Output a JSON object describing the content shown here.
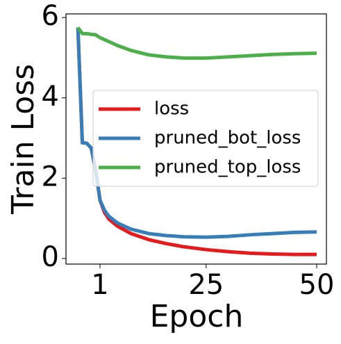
{
  "chart_data": {
    "type": "line",
    "xlabel": "Epoch",
    "ylabel": "Train Loss",
    "x": [
      -4,
      -3,
      -2,
      -1,
      0,
      1,
      2,
      3,
      5,
      8,
      12,
      16,
      20,
      25,
      30,
      35,
      40,
      45,
      50
    ],
    "series": [
      {
        "name": "loss",
        "color": "#e41a1c",
        "values": [
          5.75,
          2.88,
          2.87,
          2.75,
          2.2,
          1.45,
          1.15,
          0.98,
          0.8,
          0.62,
          0.47,
          0.37,
          0.29,
          0.22,
          0.17,
          0.13,
          0.11,
          0.1,
          0.1
        ]
      },
      {
        "name": "pruned_bot_loss",
        "color": "#377eb8",
        "values": [
          5.75,
          2.88,
          2.87,
          2.75,
          2.2,
          1.45,
          1.2,
          1.05,
          0.88,
          0.73,
          0.62,
          0.57,
          0.54,
          0.53,
          0.55,
          0.59,
          0.62,
          0.65,
          0.66
        ]
      },
      {
        "name": "pruned_top_loss",
        "color": "#4daf4a",
        "values": [
          5.75,
          5.6,
          5.6,
          5.58,
          5.57,
          5.5,
          5.45,
          5.4,
          5.3,
          5.18,
          5.07,
          5.02,
          4.99,
          4.99,
          5.02,
          5.05,
          5.08,
          5.1,
          5.11
        ]
      }
    ],
    "xlim": [
      -6.7,
      52.2
    ],
    "ylim": [
      -0.14,
      6.09
    ],
    "xticks": [
      1,
      25,
      50
    ],
    "yticks": [
      0,
      2,
      4,
      6
    ]
  }
}
